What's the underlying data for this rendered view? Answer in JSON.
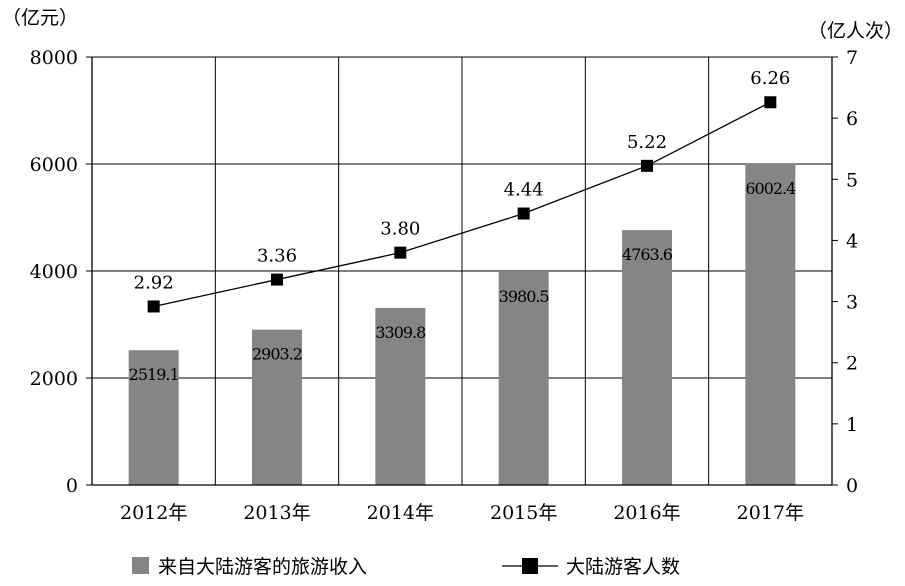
{
  "chart_data": {
    "type": "bar",
    "categories": [
      "2012年",
      "2013年",
      "2014年",
      "2015年",
      "2016年",
      "2017年"
    ],
    "y_left": {
      "unit": "（亿元）",
      "ylim": [
        0,
        8000
      ],
      "ticks": [
        "0",
        "2000",
        "4000",
        "6000",
        "8000"
      ]
    },
    "y_right": {
      "unit": "（亿人次）",
      "ylim": [
        0,
        7
      ],
      "ticks": [
        "0",
        "1",
        "2",
        "3",
        "4",
        "5",
        "6",
        "7"
      ]
    },
    "series": [
      {
        "name": "来自大陆游客的旅游收入",
        "type": "bar",
        "axis": "left",
        "color": "#858585",
        "values": [
          2519.1,
          2903.2,
          3309.8,
          3980.5,
          4763.6,
          6002.4
        ],
        "labels": [
          "2519.1",
          "2903.2",
          "3309.8",
          "3980.5",
          "4763.6",
          "6002.4"
        ]
      },
      {
        "name": "大陆游客人数",
        "type": "line",
        "axis": "right",
        "color": "#000000",
        "values": [
          2.92,
          3.36,
          3.8,
          4.44,
          5.22,
          6.26
        ],
        "labels": [
          "2.92",
          "3.36",
          "3.80",
          "4.44",
          "5.22",
          "6.26"
        ]
      }
    ],
    "grid": true,
    "legend": "bottom"
  }
}
